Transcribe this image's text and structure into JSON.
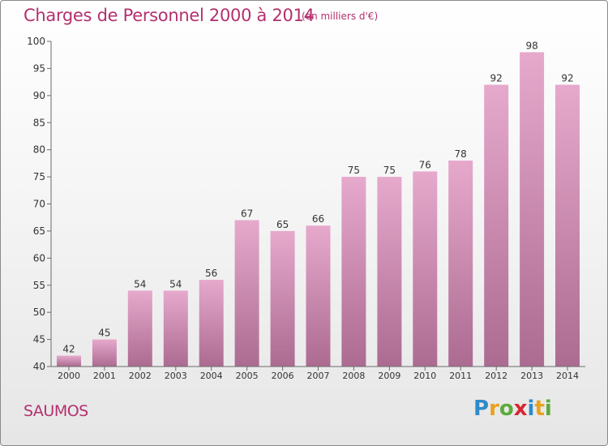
{
  "header": {
    "title": "Charges de Personnel 2000 à 2014",
    "subtitle": "(en milliers d'€)"
  },
  "footer": {
    "commune": "SAUMOS",
    "logo_letters": [
      "P",
      "r",
      "o",
      "x",
      "i",
      "t",
      "i"
    ],
    "logo_colors": [
      "#2e8bc9",
      "#e8a21c",
      "#5aab3a",
      "#d7262f",
      "#2e8bc9",
      "#e8a21c",
      "#5aab3a"
    ]
  },
  "colors": {
    "bar_top": "#e6a9cc",
    "bar_bottom": "#ac6b91",
    "accent": "#b4306e",
    "axis": "#6b6b6b"
  },
  "chart_data": {
    "type": "bar",
    "categories": [
      "2000",
      "2001",
      "2002",
      "2003",
      "2004",
      "2005",
      "2006",
      "2007",
      "2008",
      "2009",
      "2010",
      "2011",
      "2012",
      "2013",
      "2014"
    ],
    "values": [
      42,
      45,
      54,
      54,
      56,
      67,
      65,
      66,
      75,
      75,
      76,
      78,
      92,
      98,
      92
    ],
    "ylim": [
      40,
      100
    ],
    "yticks": [
      40,
      45,
      50,
      55,
      60,
      65,
      70,
      75,
      80,
      85,
      90,
      95,
      100
    ],
    "grid": false,
    "data_labels": true
  }
}
